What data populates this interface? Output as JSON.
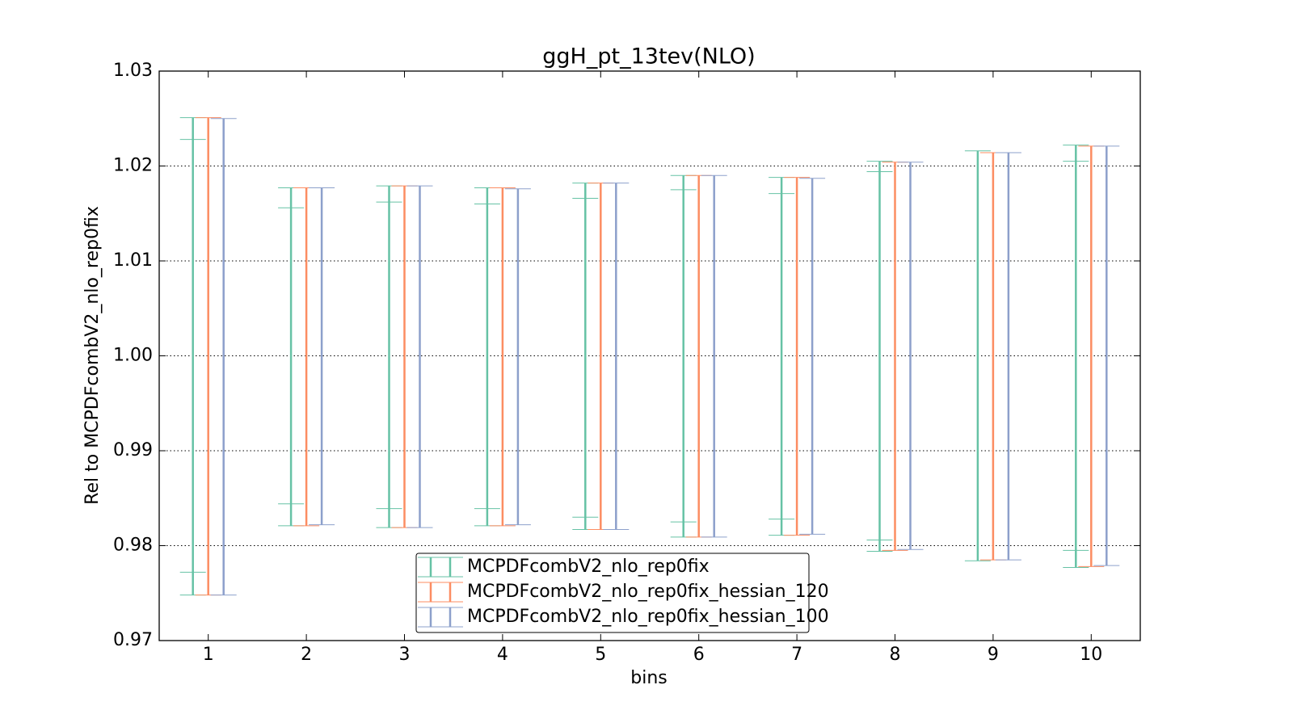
{
  "chart_data": {
    "type": "errorbar",
    "title": "ggH_pt_13tev(NLO)",
    "xlabel": "bins",
    "ylabel": "Rel to MCPDFcombV2_nlo_rep0fix",
    "x": [
      1,
      2,
      3,
      4,
      5,
      6,
      7,
      8,
      9,
      10
    ],
    "xlim": [
      0.5,
      10.5
    ],
    "xticks": [
      1,
      2,
      3,
      4,
      5,
      6,
      7,
      8,
      9,
      10
    ],
    "ylim": [
      0.97,
      1.03
    ],
    "yticks": [
      0.97,
      0.98,
      0.99,
      {
        "value": 1.0,
        "label": "1.00"
      },
      1.01,
      1.02,
      1.03
    ],
    "grid": true,
    "legend_position": "lower center",
    "series": [
      {
        "name": "MCPDFcombV2_nlo_rep0fix",
        "color": "#66c2a5",
        "upper": [
          1.0251,
          1.0177,
          1.0179,
          1.0177,
          1.0182,
          1.019,
          1.0188,
          1.0205,
          1.0216,
          1.0222
        ],
        "lower": [
          0.9748,
          0.9821,
          0.9819,
          0.9821,
          0.9817,
          0.9809,
          0.9811,
          0.9794,
          0.9784,
          0.9777
        ],
        "inner_upper": [
          1.0228,
          1.0156,
          1.0162,
          1.016,
          1.0166,
          1.0175,
          1.0171,
          1.0194,
          null,
          1.0205
        ],
        "inner_lower": [
          0.9772,
          0.9844,
          0.9839,
          0.9839,
          0.983,
          0.9825,
          0.9828,
          0.9806,
          null,
          0.9795
        ]
      },
      {
        "name": "MCPDFcombV2_nlo_rep0fix_hessian_120",
        "color": "#fc8d62",
        "upper": [
          1.0251,
          1.0177,
          1.0179,
          1.0177,
          1.0182,
          1.019,
          1.0188,
          1.0204,
          1.0214,
          1.0221
        ],
        "lower": [
          0.9748,
          0.9821,
          0.9819,
          0.9821,
          0.9817,
          0.9809,
          0.9811,
          0.9795,
          0.9785,
          0.9778
        ]
      },
      {
        "name": "MCPDFcombV2_nlo_rep0fix_hessian_100",
        "color": "#8da0cb",
        "upper": [
          1.025,
          1.0177,
          1.0179,
          1.0176,
          1.0182,
          1.019,
          1.0187,
          1.0204,
          1.0214,
          1.0221
        ],
        "lower": [
          0.9748,
          0.9822,
          0.9819,
          0.9822,
          0.9817,
          0.9809,
          0.9812,
          0.9796,
          0.9785,
          0.9779
        ]
      }
    ]
  }
}
